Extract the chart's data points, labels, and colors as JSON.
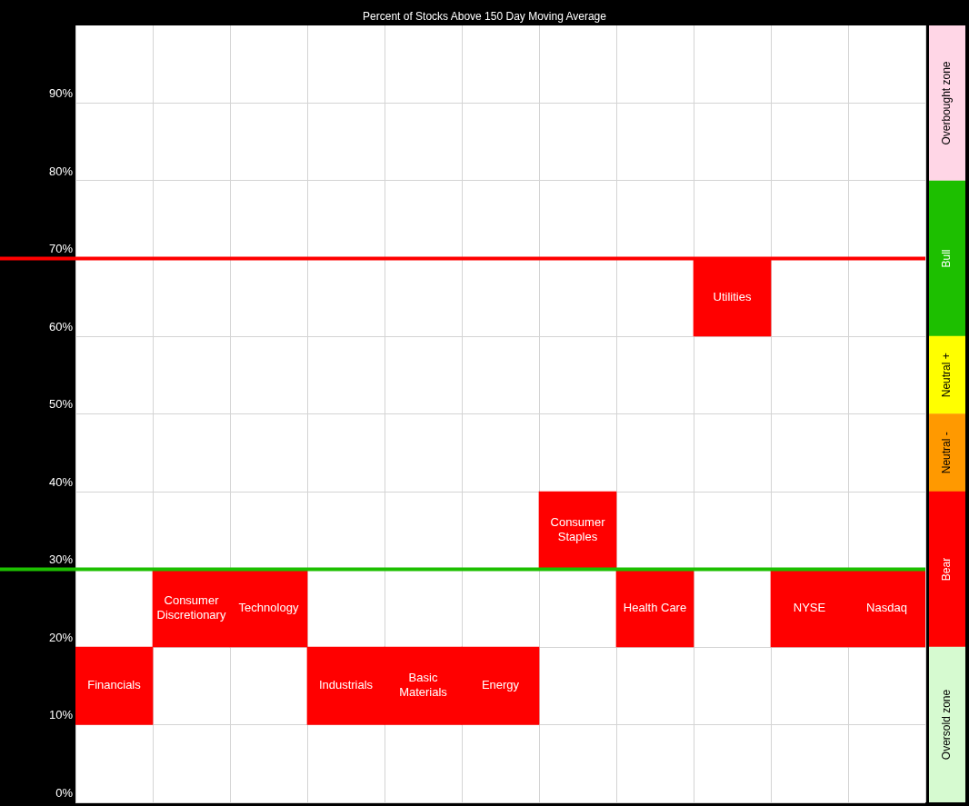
{
  "chart_data": [
    {
      "type": "bar",
      "title": "Percent of Stocks Above 150 Day Moving Average",
      "categories": [
        "Financials",
        "Consumer Discretionary",
        "Technology",
        "Industrials",
        "Basic Materials",
        "Energy",
        "Consumer Staples",
        "Health Care",
        "Utilities",
        "NYSE",
        "Nasdaq"
      ],
      "base": [
        10,
        20,
        20,
        10,
        10,
        10,
        30,
        20,
        60,
        20,
        20
      ],
      "values": [
        10,
        10,
        10,
        10,
        10,
        10,
        10,
        10,
        10,
        10,
        10
      ],
      "color": "#ff0000",
      "ylim": [
        0,
        100
      ],
      "yticks": [
        {
          "value": 0,
          "label": "0%"
        },
        {
          "value": 10,
          "label": "10%"
        },
        {
          "value": 20,
          "label": "20%"
        },
        {
          "value": 30,
          "label": "30%"
        },
        {
          "value": 40,
          "label": "40%"
        },
        {
          "value": 50,
          "label": "50%"
        },
        {
          "value": 60,
          "label": "60%"
        },
        {
          "value": 70,
          "label": "70%"
        },
        {
          "value": 80,
          "label": "80%"
        },
        {
          "value": 90,
          "label": "90%"
        }
      ],
      "grid": true,
      "tick_labels": "y",
      "ref_lines": [
        {
          "axis": "y",
          "value": 70,
          "color": "#ff0000"
        },
        {
          "axis": "y",
          "value": 30,
          "color": "#1dbf00"
        }
      ]
    },
    {
      "type": "bar",
      "stacked": true,
      "categories": [
        null
      ],
      "ylim": [
        0,
        100
      ],
      "tick_labels": false,
      "series": [
        {
          "name": "Oversold zone",
          "color": "#d6fad0",
          "values": [
            20
          ]
        },
        {
          "name": "Bear",
          "color": "#ff0000",
          "values": [
            20
          ]
        },
        {
          "name": "Neutral -",
          "color": "#ff9900",
          "values": [
            10
          ]
        },
        {
          "name": "Neutral +",
          "color": "#ffff00",
          "values": [
            10
          ]
        },
        {
          "name": "Bull",
          "color": "#1dbf00",
          "values": [
            20
          ]
        },
        {
          "name": "Overbought zone",
          "color": "#ffd6e6",
          "values": [
            20
          ]
        }
      ]
    }
  ]
}
